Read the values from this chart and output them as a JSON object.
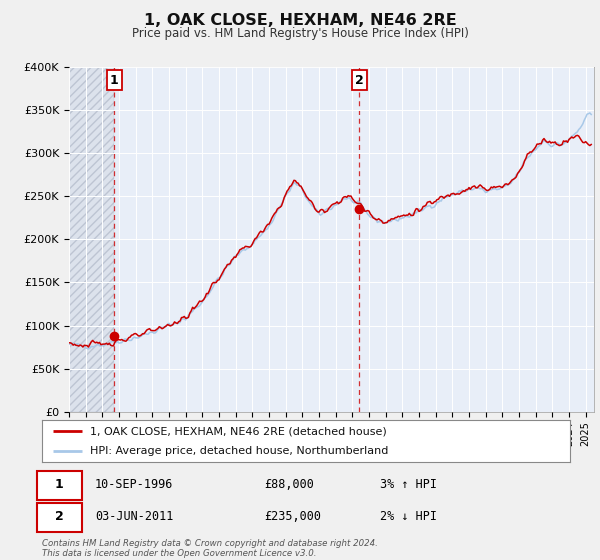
{
  "title": "1, OAK CLOSE, HEXHAM, NE46 2RE",
  "subtitle": "Price paid vs. HM Land Registry's House Price Index (HPI)",
  "hpi_color": "#a8c8e8",
  "price_color": "#cc0000",
  "marker_color": "#cc0000",
  "fig_bg": "#f0f0f0",
  "plot_bg": "#e8eef8",
  "hatch_bg": "#d8dde8",
  "grid_color": "#ffffff",
  "ylim": [
    0,
    400000
  ],
  "yticks": [
    0,
    50000,
    100000,
    150000,
    200000,
    250000,
    300000,
    350000,
    400000
  ],
  "ytick_labels": [
    "£0",
    "£50K",
    "£100K",
    "£150K",
    "£200K",
    "£250K",
    "£300K",
    "£350K",
    "£400K"
  ],
  "sale1_date_num": 1996.7,
  "sale1_price": 88000,
  "sale1_label": "10-SEP-1996",
  "sale1_price_str": "£88,000",
  "sale1_hpi_str": "3% ↑ HPI",
  "sale2_date_num": 2011.42,
  "sale2_price": 235000,
  "sale2_label": "03-JUN-2011",
  "sale2_price_str": "£235,000",
  "sale2_hpi_str": "2% ↓ HPI",
  "legend_line1": "1, OAK CLOSE, HEXHAM, NE46 2RE (detached house)",
  "legend_line2": "HPI: Average price, detached house, Northumberland",
  "footer": "Contains HM Land Registry data © Crown copyright and database right 2024.\nThis data is licensed under the Open Government Licence v3.0.",
  "xmin": 1994.0,
  "xmax": 2025.5
}
